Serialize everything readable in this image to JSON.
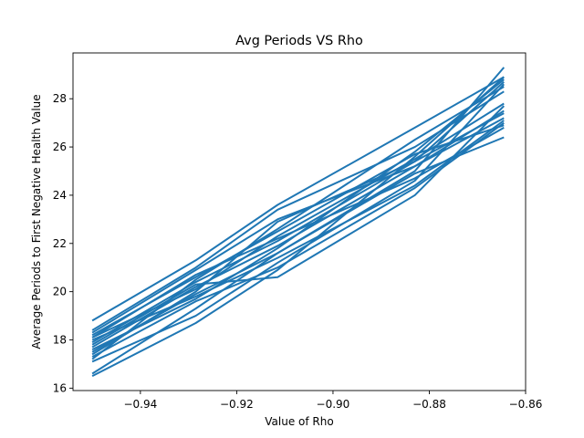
{
  "chart_data": {
    "type": "line",
    "title": "Avg Periods VS Rho",
    "xlabel": "Value of Rho",
    "ylabel": "Average Periods to First Negative Health Value",
    "xlim": [
      -0.954,
      -0.86
    ],
    "ylim": [
      15.9,
      29.9
    ],
    "x_ticks": [
      -0.94,
      -0.92,
      -0.9,
      -0.88,
      -0.86
    ],
    "x_tick_labels": [
      "−0.94",
      "−0.92",
      "−0.90",
      "−0.88",
      "−0.86"
    ],
    "y_ticks": [
      16,
      18,
      20,
      22,
      24,
      26,
      28
    ],
    "y_tick_labels": [
      "16",
      "18",
      "20",
      "22",
      "24",
      "26",
      "28"
    ],
    "grid": false,
    "legend": "none",
    "line_color": "#1f77b4",
    "x": [
      -0.95,
      -0.9285,
      -0.9115,
      -0.883,
      -0.8645
    ],
    "series": [
      {
        "values": [
          16.5,
          18.7,
          20.9,
          25.6,
          28.9
        ]
      },
      {
        "values": [
          16.6,
          19.3,
          21.6,
          25.0,
          29.3
        ]
      },
      {
        "values": [
          17.1,
          19.0,
          21.2,
          24.6,
          28.6
        ]
      },
      {
        "values": [
          17.3,
          19.6,
          21.0,
          24.3,
          27.0
        ]
      },
      {
        "values": [
          17.5,
          19.9,
          21.6,
          24.9,
          26.4
        ]
      },
      {
        "values": [
          17.7,
          20.2,
          21.9,
          25.2,
          27.2
        ]
      },
      {
        "values": [
          17.8,
          20.3,
          20.6,
          24.0,
          27.7
        ]
      },
      {
        "values": [
          17.9,
          20.4,
          22.1,
          25.4,
          27.4
        ]
      },
      {
        "values": [
          18.0,
          19.8,
          21.4,
          24.4,
          27.1
        ]
      },
      {
        "values": [
          18.1,
          20.1,
          22.3,
          25.5,
          27.8
        ]
      },
      {
        "values": [
          18.2,
          20.6,
          22.5,
          25.7,
          26.9
        ]
      },
      {
        "values": [
          18.3,
          20.9,
          23.0,
          25.2,
          27.5
        ]
      },
      {
        "values": [
          18.4,
          21.0,
          23.4,
          26.0,
          28.3
        ]
      },
      {
        "values": [
          17.6,
          19.7,
          21.8,
          25.8,
          28.8
        ]
      },
      {
        "values": [
          17.2,
          20.5,
          22.6,
          26.3,
          28.5
        ]
      },
      {
        "values": [
          18.8,
          21.3,
          23.6,
          26.8,
          28.9
        ]
      },
      {
        "values": [
          17.4,
          20.0,
          22.9,
          25.4,
          28.7
        ]
      },
      {
        "values": [
          18.1,
          20.7,
          22.2,
          24.7,
          26.8
        ]
      }
    ]
  }
}
